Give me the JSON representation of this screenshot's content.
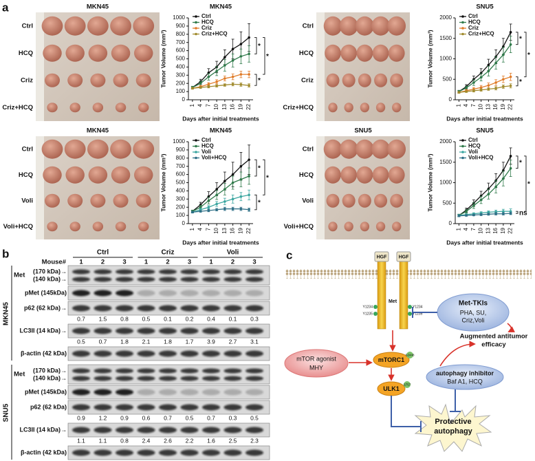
{
  "panel_labels": [
    "a",
    "b",
    "c"
  ],
  "photos": [
    {
      "title": "MKN45",
      "rows": [
        "Ctrl",
        "HCQ",
        "Criz",
        "Criz+HCQ"
      ]
    },
    {
      "rows": [
        "Ctrl",
        "HCQ",
        "Criz",
        "Criz+HCQ"
      ]
    },
    {
      "title": "MKN45",
      "rows": [
        "Ctrl",
        "HCQ",
        "Voli",
        "Voli+HCQ"
      ]
    },
    {
      "title": "SNU5",
      "rows": [
        "Ctrl",
        "HCQ",
        "Voli",
        "Voli+HCQ"
      ]
    }
  ],
  "chart_data": [
    {
      "type": "line",
      "title": "MKN45",
      "ylabel": "Tumor Volume (mm³)",
      "xlabel": "Days after initial treatments",
      "x": [
        1,
        4,
        7,
        10,
        13,
        16,
        19,
        22
      ],
      "xticks": [
        1,
        4,
        7,
        10,
        13,
        16,
        19,
        22
      ],
      "xlim": [
        -0.5,
        23.5
      ],
      "ylim": [
        0,
        1000
      ],
      "yticks": [
        0,
        100,
        200,
        300,
        400,
        500,
        600,
        700,
        800,
        900,
        1000
      ],
      "legend": "upper left",
      "series": [
        {
          "name": "Ctrl",
          "color": "#111111",
          "values": [
            150,
            220,
            330,
            400,
            520,
            620,
            680,
            760
          ],
          "errors": [
            15,
            30,
            50,
            70,
            90,
            120,
            150,
            170
          ]
        },
        {
          "name": "HCQ",
          "color": "#2f7a4a",
          "values": [
            150,
            200,
            280,
            350,
            420,
            480,
            530,
            560
          ],
          "errors": [
            15,
            25,
            40,
            55,
            70,
            80,
            90,
            100
          ]
        },
        {
          "name": "Criz",
          "color": "#e07b28",
          "values": [
            140,
            160,
            190,
            220,
            260,
            280,
            310,
            310
          ],
          "errors": [
            10,
            15,
            20,
            25,
            30,
            35,
            40,
            40
          ]
        },
        {
          "name": "Criz+HCQ",
          "color": "#a08a2c",
          "values": [
            140,
            150,
            160,
            170,
            180,
            190,
            185,
            175
          ],
          "errors": [
            10,
            10,
            15,
            15,
            15,
            20,
            20,
            20
          ]
        }
      ],
      "brackets": [
        {
          "label": "*",
          "series": [
            0,
            1
          ]
        },
        {
          "label": "*",
          "series": [
            0,
            2
          ]
        },
        {
          "label": "*",
          "series": [
            2,
            3
          ]
        }
      ]
    },
    {
      "type": "line",
      "title": "SNU5",
      "ylabel": "Tumor Volume (mm³)",
      "xlabel": "Days after initial treatments",
      "x": [
        1,
        4,
        7,
        10,
        13,
        16,
        19,
        22
      ],
      "xticks": [
        1,
        4,
        7,
        10,
        13,
        16,
        19,
        22
      ],
      "xlim": [
        -0.5,
        23.5
      ],
      "ylim": [
        0,
        2000
      ],
      "yticks": [
        0,
        500,
        1000,
        1500,
        2000
      ],
      "legend": "upper left",
      "series": [
        {
          "name": "Ctrl",
          "color": "#111111",
          "values": [
            200,
            320,
            500,
            650,
            850,
            1050,
            1300,
            1650
          ],
          "errors": [
            30,
            50,
            80,
            110,
            140,
            170,
            200,
            200
          ]
        },
        {
          "name": "HCQ",
          "color": "#2f7a4a",
          "values": [
            200,
            290,
            420,
            550,
            700,
            900,
            1100,
            1350
          ],
          "errors": [
            30,
            40,
            70,
            90,
            120,
            150,
            180,
            200
          ]
        },
        {
          "name": "Criz",
          "color": "#e07b28",
          "values": [
            180,
            220,
            260,
            300,
            350,
            420,
            500,
            560
          ],
          "errors": [
            20,
            30,
            40,
            50,
            60,
            70,
            80,
            90
          ]
        },
        {
          "name": "Criz+HCQ",
          "color": "#a08a2c",
          "values": [
            180,
            200,
            220,
            240,
            260,
            280,
            320,
            340
          ],
          "errors": [
            20,
            20,
            30,
            30,
            30,
            40,
            40,
            50
          ]
        }
      ],
      "brackets": [
        {
          "label": "*",
          "series": [
            0,
            1
          ]
        },
        {
          "label": "*",
          "series": [
            0,
            2
          ]
        },
        {
          "label": "*",
          "series": [
            2,
            3
          ]
        }
      ]
    },
    {
      "type": "line",
      "title": "MKN45",
      "ylabel": "Tumor Volume (mm³)",
      "xlabel": "Days after initial treatments",
      "x": [
        1,
        4,
        7,
        10,
        13,
        16,
        19,
        22
      ],
      "xticks": [
        1,
        4,
        7,
        10,
        13,
        16,
        19,
        22
      ],
      "xlim": [
        -0.5,
        23.5
      ],
      "ylim": [
        0,
        1000
      ],
      "yticks": [
        0,
        100,
        200,
        300,
        400,
        500,
        600,
        700,
        800,
        900,
        1000
      ],
      "legend": "upper left",
      "series": [
        {
          "name": "Ctrl",
          "color": "#111111",
          "values": [
            150,
            230,
            330,
            420,
            520,
            600,
            700,
            780
          ],
          "errors": [
            15,
            30,
            60,
            80,
            110,
            150,
            170,
            180
          ]
        },
        {
          "name": "HCQ",
          "color": "#2f7a4a",
          "values": [
            150,
            200,
            280,
            350,
            420,
            500,
            540,
            580
          ],
          "errors": [
            15,
            25,
            40,
            55,
            70,
            80,
            90,
            100
          ]
        },
        {
          "name": "Voli",
          "color": "#3aa6a0",
          "values": [
            140,
            170,
            200,
            240,
            270,
            300,
            330,
            350
          ],
          "errors": [
            10,
            15,
            20,
            30,
            40,
            50,
            50,
            60
          ]
        },
        {
          "name": "Voli+HCQ",
          "color": "#2e6f86",
          "values": [
            140,
            150,
            160,
            170,
            180,
            180,
            180,
            170
          ],
          "errors": [
            10,
            10,
            15,
            15,
            20,
            20,
            20,
            20
          ]
        }
      ],
      "brackets": [
        {
          "label": "*",
          "series": [
            0,
            1
          ]
        },
        {
          "label": "*",
          "series": [
            0,
            2
          ]
        },
        {
          "label": "*",
          "series": [
            2,
            3
          ]
        }
      ]
    },
    {
      "type": "line",
      "title": "SNU5",
      "ylabel": "Tumor Volume (mm³)",
      "xlabel": "Days after initial treatments",
      "x": [
        1,
        4,
        7,
        10,
        13,
        16,
        19,
        22
      ],
      "xticks": [
        1,
        4,
        7,
        10,
        13,
        16,
        19,
        22
      ],
      "xlim": [
        -0.5,
        23.5
      ],
      "ylim": [
        0,
        2000
      ],
      "yticks": [
        0,
        500,
        1000,
        1500,
        2000
      ],
      "legend": "upper left",
      "series": [
        {
          "name": "Ctrl",
          "color": "#111111",
          "values": [
            200,
            330,
            500,
            680,
            850,
            1050,
            1300,
            1650
          ],
          "errors": [
            30,
            50,
            80,
            110,
            140,
            170,
            200,
            200
          ]
        },
        {
          "name": "HCQ",
          "color": "#2f7a4a",
          "values": [
            200,
            300,
            440,
            580,
            720,
            900,
            1100,
            1350
          ],
          "errors": [
            30,
            40,
            70,
            90,
            120,
            150,
            180,
            200
          ]
        },
        {
          "name": "Voli",
          "color": "#3aa6a0",
          "values": [
            200,
            220,
            240,
            260,
            280,
            290,
            300,
            300
          ],
          "errors": [
            20,
            20,
            25,
            30,
            30,
            40,
            50,
            60
          ]
        },
        {
          "name": "Voli+HCQ",
          "color": "#2e6f86",
          "values": [
            190,
            200,
            210,
            220,
            230,
            240,
            240,
            250
          ],
          "errors": [
            20,
            20,
            20,
            25,
            25,
            30,
            30,
            30
          ]
        }
      ],
      "brackets": [
        {
          "label": "*",
          "series": [
            0,
            1
          ]
        },
        {
          "label": "*",
          "series": [
            0,
            2
          ]
        },
        {
          "label": "ns",
          "series": [
            2,
            3
          ]
        }
      ]
    }
  ],
  "blots": {
    "groups": [
      "Ctrl",
      "Criz",
      "Voli"
    ],
    "mouse_label": "Mouse#",
    "mice": [
      1,
      2,
      3,
      1,
      2,
      3,
      1,
      2,
      3
    ],
    "sections": [
      {
        "name": "MKN45",
        "rows": [
          {
            "label": "Met",
            "bands": [
              "(170 kDa)→",
              "(140 kDa)→"
            ]
          },
          {
            "label": "pMet (145kDa)"
          },
          {
            "label": "p62 (62 kDa)→",
            "quant": [
              0.7,
              1.5,
              0.8,
              0.5,
              0.1,
              0.2,
              0.4,
              0.1,
              0.3
            ]
          },
          {
            "label": "LC3II (14 kDa)→",
            "quant": [
              0.5,
              0.7,
              1.8,
              2.1,
              1.8,
              1.7,
              3.9,
              2.7,
              3.1
            ]
          },
          {
            "label": "β-actin (42 kDa)"
          }
        ]
      },
      {
        "name": "SNU5",
        "rows": [
          {
            "label": "Met",
            "bands": [
              "(170 kDa)→",
              "(140 kDa)→"
            ]
          },
          {
            "label": "pMet (145kDa)"
          },
          {
            "label": "p62 (62 kDa)",
            "quant": [
              0.9,
              1.2,
              0.9,
              0.6,
              0.7,
              0.5,
              0.7,
              0.3,
              0.5
            ]
          },
          {
            "label": "LC3II (14 kDa)→",
            "quant": [
              1.1,
              1.1,
              0.8,
              2.4,
              2.6,
              2.2,
              1.6,
              2.5,
              2.3
            ]
          },
          {
            "label": "β-actin (42 kDa)"
          }
        ]
      }
    ]
  },
  "diagram": {
    "ligands": [
      "HGF",
      "HGF"
    ],
    "receptor": "Met",
    "sites": [
      "Y1234",
      "Y1235",
      "Y1234",
      "Y1235"
    ],
    "tki": {
      "title": "Met-TKIs",
      "lines": [
        "PHA, SU,",
        "Criz,Voli"
      ]
    },
    "outcome": [
      "Augmented antitumor",
      "efficacy"
    ],
    "agonist": {
      "title": "mTOR agonist",
      "lines": [
        "MHY"
      ]
    },
    "mtorc1": "mTORC1",
    "mtorc1_site": "S2448",
    "ulk1": "ULK1",
    "ulk1_site": "S757",
    "autophagy_inhibitor": {
      "title": "autophagy inhibitor",
      "lines": [
        "Baf A1, HCQ"
      ]
    },
    "result": [
      "Protective",
      "autophagy"
    ]
  }
}
